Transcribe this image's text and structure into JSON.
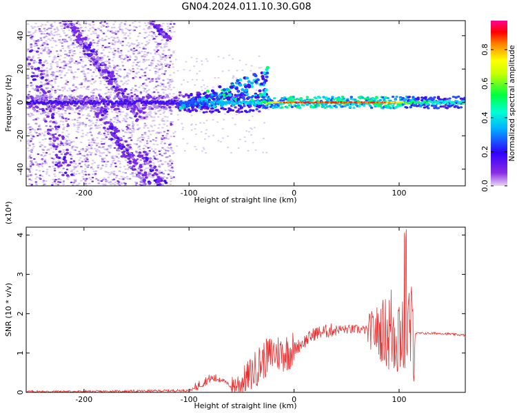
{
  "title": "GN04.2024.011.10.30.G08",
  "colors": {
    "snr_line": "#e83030",
    "axis": "#000000"
  },
  "chart_data": [
    {
      "type": "heatmap",
      "xlabel": "Height of straight line (km)",
      "ylabel": "Frequency (Hz)",
      "xlim": [
        -255,
        163
      ],
      "ylim": [
        -50,
        49
      ],
      "xticks": [
        -200,
        -100,
        0,
        100
      ],
      "yticks": [
        -40,
        -20,
        0,
        20,
        40
      ],
      "grid": false,
      "colorbar": {
        "label": "Normalized spectral amplitude",
        "range": [
          0,
          0.97
        ],
        "ticks": [
          0.0,
          0.2,
          0.4,
          0.6,
          0.8
        ],
        "colormap": "rainbow (purple-blue-cyan-green-yellow-red-magenta)"
      },
      "ridge": {
        "frequency_hz": 0,
        "x": [
          -250,
          -200,
          -150,
          -120,
          -100,
          -80,
          -60,
          -40,
          -30,
          -20,
          -10,
          0,
          20,
          40,
          60,
          80,
          100,
          110,
          130,
          160
        ],
        "amplitude": [
          0.25,
          0.22,
          0.25,
          0.25,
          0.35,
          0.4,
          0.45,
          0.45,
          0.6,
          0.8,
          0.9,
          0.97,
          0.95,
          0.95,
          0.95,
          0.95,
          0.85,
          0.6,
          0.55,
          0.5
        ]
      }
    },
    {
      "type": "line",
      "xlabel": "Height of straight line (km)",
      "ylabel": "SNR (10 * v/v)",
      "yscale_label": "(x10⁴)",
      "xlim": [
        -255,
        163
      ],
      "ylim": [
        0,
        4.2
      ],
      "xticks": [
        -200,
        -100,
        0,
        100
      ],
      "yticks": [
        0,
        1,
        2,
        3,
        4
      ],
      "grid": false,
      "series": [
        {
          "x": [
            -255,
            -200,
            -150,
            -100,
            -95,
            -90,
            -80,
            -70,
            -60,
            -50,
            -40,
            -30,
            -20,
            -10,
            0,
            10,
            20,
            30,
            40,
            50,
            60,
            70,
            80,
            90,
            100,
            110,
            115,
            120,
            140,
            163
          ],
          "y": [
            0.02,
            0.02,
            0.03,
            0.05,
            0.1,
            0.2,
            0.35,
            0.35,
            0.15,
            0.25,
            0.5,
            0.8,
            1.0,
            1.0,
            1.1,
            1.3,
            1.5,
            1.55,
            1.6,
            1.6,
            1.6,
            1.58,
            1.55,
            1.55,
            1.6,
            1.55,
            1.5,
            1.5,
            1.5,
            1.45
          ]
        }
      ]
    }
  ]
}
